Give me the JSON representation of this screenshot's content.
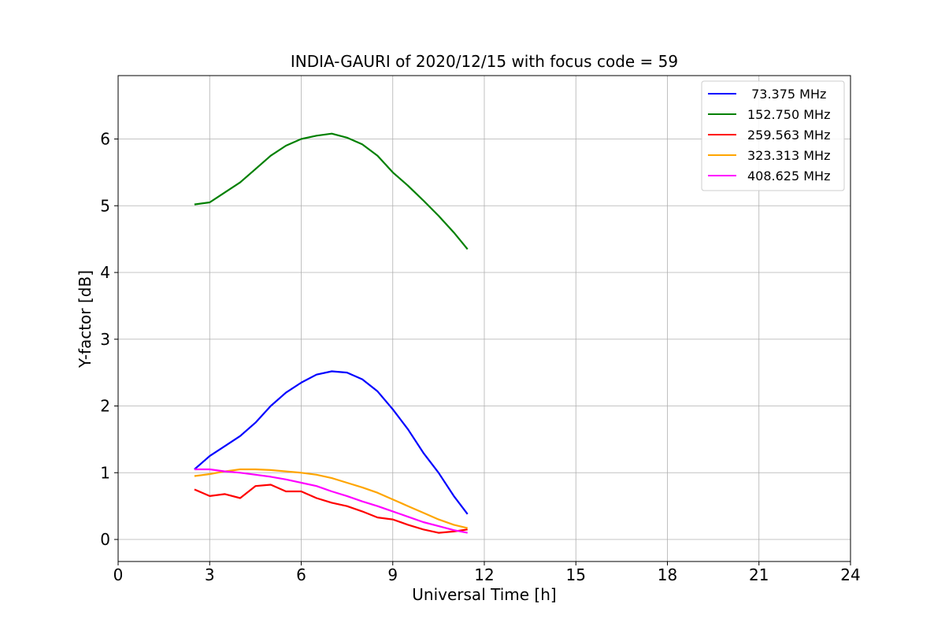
{
  "chart_data": {
    "type": "line",
    "title": "INDIA-GAURI of 2020/12/15 with focus code = 59",
    "xlabel": "Universal Time [h]",
    "ylabel": "Y-factor [dB]",
    "xlim": [
      0,
      24
    ],
    "ylim": [
      -0.33,
      6.95
    ],
    "xticks": [
      0,
      3,
      6,
      9,
      12,
      15,
      18,
      21,
      24
    ],
    "xtick_labels": [
      "0",
      "3",
      "6",
      "9",
      "12",
      "15",
      "18",
      "21",
      "24"
    ],
    "yticks": [
      0,
      1,
      2,
      3,
      4,
      5,
      6
    ],
    "ytick_labels": [
      "0",
      "1",
      "2",
      "3",
      "4",
      "5",
      "6"
    ],
    "grid": true,
    "legend_position": "top-right",
    "series": [
      {
        "name": " 73.375 MHz",
        "color": "#0000ff",
        "x": [
          2.5,
          3.0,
          3.5,
          4.0,
          4.5,
          5.0,
          5.5,
          6.0,
          6.5,
          7.0,
          7.5,
          8.0,
          8.5,
          9.0,
          9.5,
          10.0,
          10.5,
          11.0,
          11.45
        ],
        "y": [
          1.05,
          1.25,
          1.4,
          1.55,
          1.75,
          2.0,
          2.2,
          2.35,
          2.47,
          2.52,
          2.5,
          2.4,
          2.22,
          1.95,
          1.65,
          1.3,
          1.0,
          0.65,
          0.38
        ]
      },
      {
        "name": "152.750 MHz",
        "color": "#008000",
        "x": [
          2.5,
          3.0,
          3.5,
          4.0,
          4.5,
          5.0,
          5.5,
          6.0,
          6.5,
          7.0,
          7.5,
          8.0,
          8.5,
          9.0,
          9.5,
          10.0,
          10.5,
          11.0,
          11.45
        ],
        "y": [
          5.02,
          5.05,
          5.2,
          5.35,
          5.55,
          5.75,
          5.9,
          6.0,
          6.05,
          6.08,
          6.02,
          5.92,
          5.75,
          5.5,
          5.3,
          5.08,
          4.85,
          4.6,
          4.35
        ]
      },
      {
        "name": "259.563 MHz",
        "color": "#ff0000",
        "x": [
          2.5,
          3.0,
          3.5,
          4.0,
          4.5,
          5.0,
          5.5,
          6.0,
          6.5,
          7.0,
          7.5,
          8.0,
          8.5,
          9.0,
          9.5,
          10.0,
          10.5,
          11.0,
          11.45
        ],
        "y": [
          0.75,
          0.65,
          0.68,
          0.62,
          0.8,
          0.82,
          0.72,
          0.72,
          0.62,
          0.55,
          0.5,
          0.42,
          0.33,
          0.3,
          0.22,
          0.15,
          0.1,
          0.12,
          0.15
        ]
      },
      {
        "name": "323.313 MHz",
        "color": "#ffa500",
        "x": [
          2.5,
          3.0,
          3.5,
          4.0,
          4.5,
          5.0,
          5.5,
          6.0,
          6.5,
          7.0,
          7.5,
          8.0,
          8.5,
          9.0,
          9.5,
          10.0,
          10.5,
          11.0,
          11.45
        ],
        "y": [
          0.95,
          0.98,
          1.02,
          1.05,
          1.05,
          1.04,
          1.02,
          1.0,
          0.97,
          0.92,
          0.85,
          0.78,
          0.7,
          0.6,
          0.5,
          0.4,
          0.3,
          0.22,
          0.17
        ]
      },
      {
        "name": "408.625 MHz",
        "color": "#ff00ff",
        "x": [
          2.5,
          3.0,
          3.5,
          4.0,
          4.5,
          5.0,
          5.5,
          6.0,
          6.5,
          7.0,
          7.5,
          8.0,
          8.5,
          9.0,
          9.5,
          10.0,
          10.5,
          11.0,
          11.45
        ],
        "y": [
          1.05,
          1.05,
          1.02,
          1.0,
          0.97,
          0.94,
          0.9,
          0.85,
          0.8,
          0.72,
          0.65,
          0.57,
          0.5,
          0.42,
          0.34,
          0.26,
          0.2,
          0.14,
          0.1
        ]
      }
    ]
  }
}
